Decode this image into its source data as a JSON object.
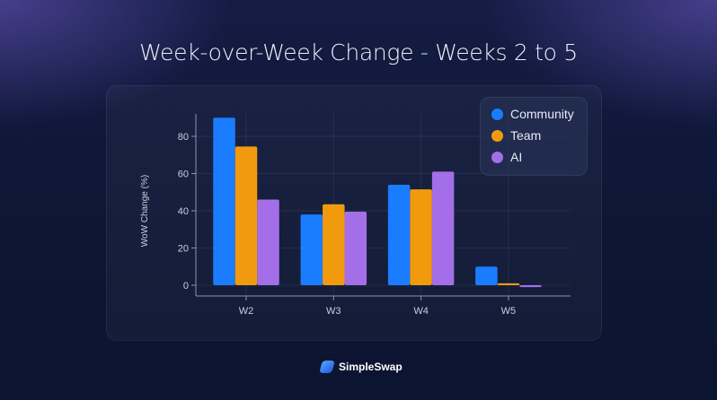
{
  "chart_data": {
    "type": "bar",
    "title": "Week-over-Week Change - Weeks 2 to 5",
    "ylabel": "WoW Change (%)",
    "xlabel": "",
    "categories": [
      "W2",
      "W3",
      "W4",
      "W5"
    ],
    "yticks": [
      0,
      20,
      40,
      60,
      80
    ],
    "ylim": [
      -3,
      92
    ],
    "grid": true,
    "legend_position": "top-right",
    "series": [
      {
        "name": "Community",
        "color": "#1a7cff",
        "icon": "globe-icon",
        "values": [
          90,
          38,
          54,
          10
        ]
      },
      {
        "name": "Team",
        "color": "#f29a0e",
        "icon": "team-icon",
        "values": [
          74.5,
          43.5,
          51.5,
          1
        ]
      },
      {
        "name": "AI",
        "color": "#a46ee8",
        "icon": "ai-chip-icon",
        "values": [
          46,
          39.5,
          61,
          -1
        ]
      }
    ]
  },
  "brand": {
    "name": "SimpleSwap"
  }
}
